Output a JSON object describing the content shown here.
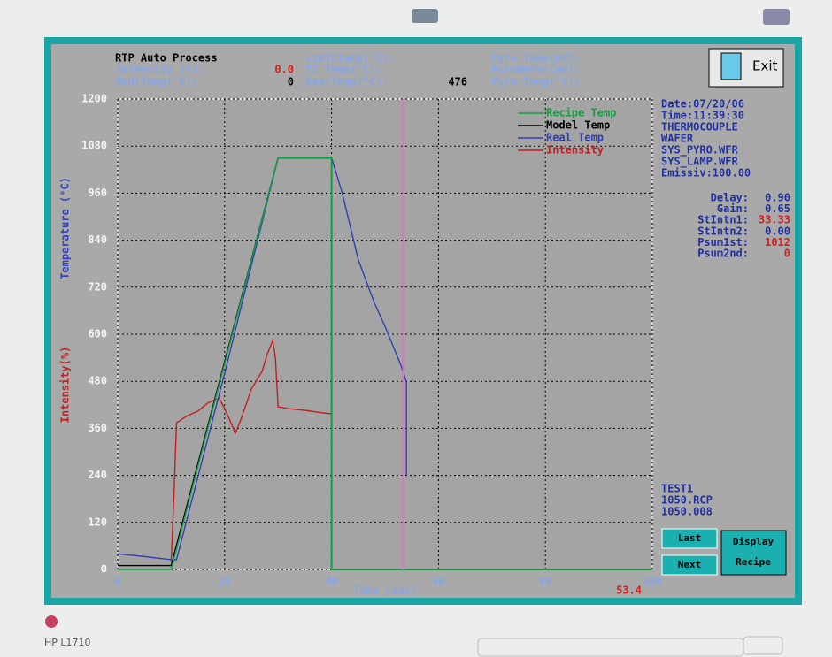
{
  "header": {
    "title": "RTP Auto Process",
    "rows": [
      [
        {
          "label": "czDTCtemp(°C):"
        },
        {
          "label": "Pyro Tube(mV):"
        }
      ],
      [
        {
          "label": "Intensity (%):",
          "value": "0.0"
        },
        {
          "label": "TC   Temp(°C):"
        },
        {
          "label": "PyroWafer(mV):"
        }
      ],
      [
        {
          "label": "ModlTemp(°C):",
          "value": "0"
        },
        {
          "label": "RealTemp(°C):",
          "value": "476"
        },
        {
          "label": "Pyro Temp(°C):"
        }
      ]
    ]
  },
  "exit_button": "Exit",
  "side_panel": {
    "info": [
      "Date:07/20/06",
      "Time:11:39:30",
      "THERMOCOUPLE",
      "WAFER",
      "SYS_PYRO.WFR",
      "SYS_LAMP.WFR",
      "Emissiv:100.00"
    ],
    "params": [
      {
        "label": "Delay:",
        "value": "0.90"
      },
      {
        "label": "Gain:",
        "value": "0.65"
      },
      {
        "label": "StIntn1:",
        "value": "33.33"
      },
      {
        "label": "StIntn2:",
        "value": "0.00"
      },
      {
        "label": "Psum1st:",
        "value": "1012"
      },
      {
        "label": "Psum2nd:",
        "value": "0"
      }
    ],
    "files": [
      "TEST1",
      "1050.RCP",
      "1050.008"
    ]
  },
  "buttons": {
    "last": "Last",
    "next": "Next",
    "display": [
      "Display",
      "Recipe"
    ]
  },
  "monitor_label": "HP L1710",
  "chart_data": {
    "type": "line",
    "x_label": "Time (sec)",
    "y_label": "Temperature (°C)",
    "y_label_2": "Intensity(%)",
    "xlim": [
      0,
      100
    ],
    "ylim": [
      0,
      1200
    ],
    "xticks": [
      0,
      20,
      40,
      60,
      80,
      100
    ],
    "yticks": [
      0,
      120,
      240,
      360,
      480,
      600,
      720,
      840,
      960,
      1080,
      1200
    ],
    "grid": true,
    "legend": "upper right",
    "current_time": 53.4,
    "current_time_color": "#e070c8",
    "series": [
      {
        "name": "Recipe Temp",
        "color": "#10a040",
        "x": [
          0,
          10,
          30,
          40,
          40,
          100
        ],
        "values": [
          0,
          0,
          1050,
          1050,
          0,
          0
        ]
      },
      {
        "name": "Model Temp",
        "color": "#000000",
        "x": [
          0,
          10,
          30,
          40,
          40,
          100
        ],
        "values": [
          10,
          10,
          1050,
          1050,
          0,
          0
        ]
      },
      {
        "name": "Real Temp",
        "color": "#3040b0",
        "x": [
          0,
          5,
          10,
          11,
          20,
          30,
          40,
          42,
          45,
          48,
          50,
          53,
          54,
          54
        ],
        "values": [
          40,
          33,
          25,
          25,
          500,
          1050,
          1050,
          960,
          790,
          680,
          620,
          520,
          478,
          240
        ]
      },
      {
        "name": "Intensity",
        "color": "#c02020",
        "x": [
          10,
          10.5,
          11,
          13,
          15,
          17,
          19,
          20,
          21,
          22,
          23,
          25,
          27,
          28,
          29,
          29.5,
          30,
          32,
          35,
          38,
          40
        ],
        "values": [
          20,
          180,
          374,
          392,
          404,
          426,
          437,
          410,
          380,
          347,
          381,
          460,
          505,
          550,
          584,
          540,
          415,
          410,
          406,
          400,
          397
        ]
      }
    ]
  }
}
